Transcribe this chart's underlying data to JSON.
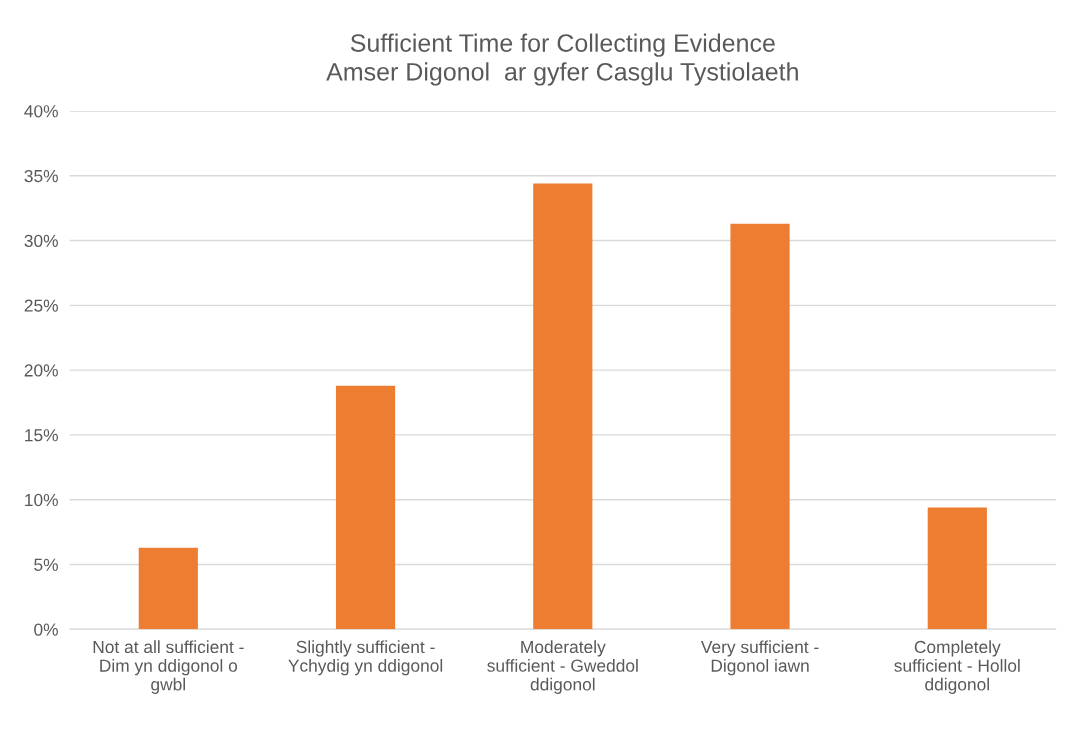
{
  "chart_data": {
    "type": "bar",
    "title": "Sufficient Time for Collecting Evidence\nAmser Digonol  ar gyfer Casglu Tystiolaeth",
    "categories": [
      "Not at all sufficient -\nDim yn ddigonol o\ngwbl",
      "Slightly sufficient -\nYchydig yn ddigonol",
      "Moderately\nsufficient - Gweddol\nddigonol",
      "Very sufficient -\nDigonol iawn",
      "Completely\nsufficient - Hollol\nddigonol"
    ],
    "values": [
      6.3,
      18.8,
      34.4,
      31.3,
      9.4
    ],
    "color": "#ed7d31",
    "ylim": [
      0,
      40
    ],
    "yticks": [
      {
        "value": 0,
        "label": "0%"
      },
      {
        "value": 5,
        "label": "5%"
      },
      {
        "value": 10,
        "label": "10%"
      },
      {
        "value": 15,
        "label": "15%"
      },
      {
        "value": 20,
        "label": "20%"
      },
      {
        "value": 25,
        "label": "25%"
      },
      {
        "value": 30,
        "label": "30%"
      },
      {
        "value": 35,
        "label": "35%"
      },
      {
        "value": 40,
        "label": "40%"
      }
    ],
    "grid": "y"
  }
}
